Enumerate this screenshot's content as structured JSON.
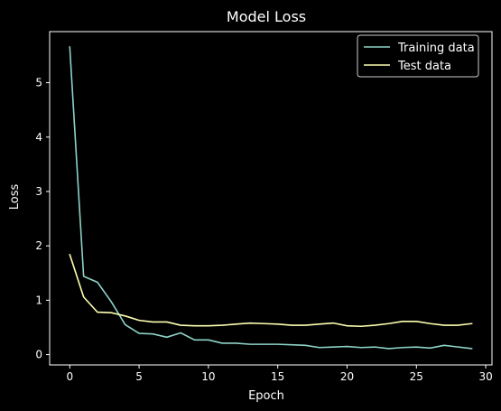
{
  "chart_data": {
    "type": "line",
    "title": "Model Loss",
    "xlabel": "Epoch",
    "ylabel": "Loss",
    "xlim": [
      -1.45,
      30.45
    ],
    "ylim": [
      -0.19,
      5.94
    ],
    "xticks": [
      0,
      5,
      10,
      15,
      20,
      25,
      30
    ],
    "yticks": [
      0,
      1,
      2,
      3,
      4,
      5
    ],
    "grid": false,
    "legend": "top-right",
    "background": "#000000",
    "x": [
      0,
      1,
      2,
      3,
      4,
      5,
      6,
      7,
      8,
      9,
      10,
      11,
      12,
      13,
      14,
      15,
      16,
      17,
      18,
      19,
      20,
      21,
      22,
      23,
      24,
      25,
      26,
      27,
      28,
      29
    ],
    "series": [
      {
        "name": "Training data",
        "color": "#8dd3c7",
        "values": [
          5.66,
          1.44,
          1.33,
          0.97,
          0.55,
          0.39,
          0.38,
          0.32,
          0.4,
          0.27,
          0.27,
          0.21,
          0.21,
          0.19,
          0.19,
          0.19,
          0.18,
          0.17,
          0.13,
          0.14,
          0.15,
          0.13,
          0.14,
          0.11,
          0.13,
          0.14,
          0.12,
          0.17,
          0.14,
          0.11
        ]
      },
      {
        "name": "Test data",
        "color": "#ffffb3",
        "values": [
          1.84,
          1.06,
          0.78,
          0.77,
          0.71,
          0.63,
          0.6,
          0.6,
          0.54,
          0.53,
          0.53,
          0.54,
          0.56,
          0.58,
          0.57,
          0.56,
          0.54,
          0.54,
          0.56,
          0.58,
          0.53,
          0.52,
          0.54,
          0.57,
          0.61,
          0.61,
          0.57,
          0.54,
          0.54,
          0.57
        ]
      }
    ]
  }
}
